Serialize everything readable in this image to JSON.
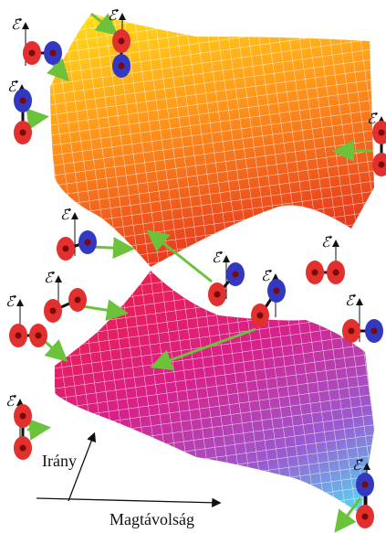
{
  "axes": {
    "direction": "Irány",
    "distance": "Magtávolság"
  },
  "field_labels": [
    "ℰ⃗",
    "ℰ⃗",
    "ℰ⃗",
    "ℰ⃗",
    "ℰ⃗",
    "ℰ⃗",
    "ℰ⃗",
    "ℰ⃗",
    "ℰ⃗",
    "ℰ⃗",
    "ℰ⃗",
    "ℰ⃗",
    "ℰ⃗"
  ]
}
